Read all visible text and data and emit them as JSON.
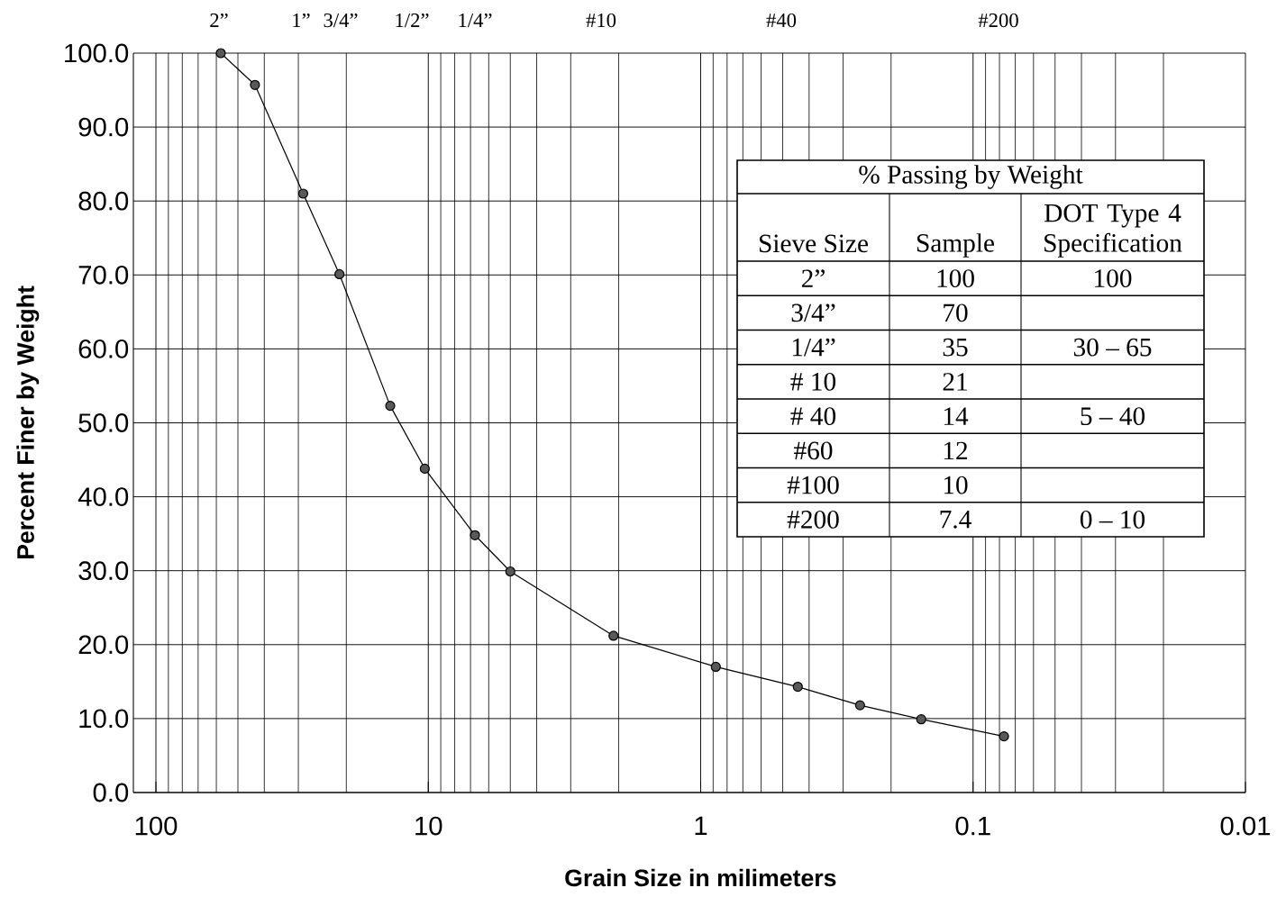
{
  "chart_data": [
    {
      "type": "line",
      "xlabel": "Grain Size in milimeters",
      "ylabel": "Percent Finer by Weight",
      "x": [
        57.8,
        43.3,
        28.8,
        21.2,
        13.8,
        10.3,
        6.74,
        5.0,
        2.09,
        0.88,
        0.44,
        0.26,
        0.155,
        0.077
      ],
      "series": [
        {
          "color": "#000000",
          "values": [
            100,
            95.7,
            81.0,
            70.1,
            52.3,
            43.8,
            34.8,
            29.9,
            21.2,
            17.0,
            14.3,
            11.8,
            9.9,
            7.6
          ]
        }
      ],
      "xlim": [
        121,
        0.01
      ],
      "xticks": [
        100,
        10,
        1,
        0.1,
        0.01
      ],
      "ylim": [
        0,
        100
      ],
      "yticks": [
        {
          "value": 0,
          "label": "0.0"
        },
        {
          "value": 10,
          "label": "10.0"
        },
        {
          "value": 20,
          "label": "20.0"
        },
        {
          "value": 30,
          "label": "30.0"
        },
        {
          "value": 40,
          "label": "40.0"
        },
        {
          "value": 50,
          "label": "50.0"
        },
        {
          "value": 60,
          "label": "60.0"
        },
        {
          "value": 70,
          "label": "70.0"
        },
        {
          "value": 80,
          "label": "80.0"
        },
        {
          "value": 90,
          "label": "90.0"
        },
        {
          "value": 100,
          "label": "100.0"
        }
      ],
      "annotations": [
        "2”",
        "1”",
        "3/4”",
        "1/2”",
        "1/4”",
        "#10",
        "#40",
        "#200"
      ],
      "log": "x",
      "grid": true,
      "marker": "circle"
    },
    {
      "type": "other",
      "title": "% Passing by Weight",
      "xlabel": "Sieve Size",
      "categories": [
        "2”",
        "3/4”",
        "1/4”",
        "# 10",
        "# 40",
        "#60",
        "#100",
        "#200"
      ],
      "series": [
        {
          "name": "Sample",
          "values": [
            100,
            70,
            35,
            21,
            14,
            12,
            10,
            7.4
          ]
        },
        {
          "name": "DOT Type 4 Specification",
          "values": [
            null,
            null,
            null,
            null,
            null,
            null,
            null,
            null
          ],
          "value_labels": [
            "100",
            null,
            "30 – 65",
            null,
            "5 – 40",
            null,
            null,
            "0 – 10"
          ]
        }
      ],
      "data_labels": true
    }
  ]
}
